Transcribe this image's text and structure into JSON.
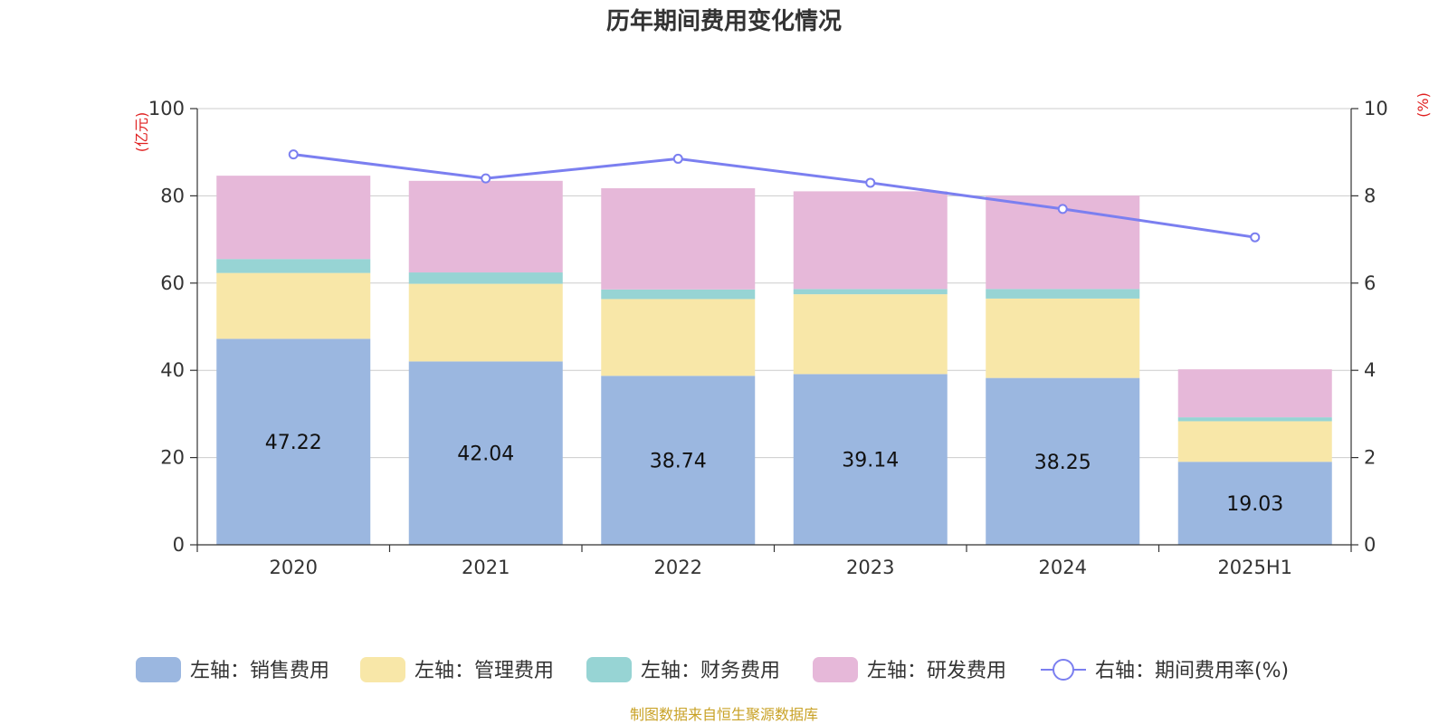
{
  "chart_data": {
    "type": "bar",
    "stacked": true,
    "title": "历年期间费用变化情况",
    "categories": [
      "2020",
      "2021",
      "2022",
      "2023",
      "2024",
      "2025H1"
    ],
    "left_axis": {
      "unit": "(亿元)",
      "ylim": [
        0,
        100
      ],
      "ticks": [
        "0",
        "20",
        "40",
        "60",
        "80",
        "100"
      ],
      "tick_values": [
        0,
        20,
        40,
        60,
        80,
        100
      ]
    },
    "right_axis": {
      "unit": "(%)",
      "ylim": [
        0,
        10
      ],
      "ticks": [
        "0",
        "2",
        "4",
        "6",
        "8",
        "10"
      ],
      "tick_values": [
        0,
        2,
        4,
        6,
        8,
        10
      ]
    },
    "grid": true,
    "legend_position": "bottom",
    "series": [
      {
        "name": "左轴：销售费用",
        "type": "bar",
        "axis": "left",
        "color": "#9bb7e0",
        "values": [
          47.22,
          42.04,
          38.74,
          39.14,
          38.25,
          19.03
        ],
        "labels": [
          "47.22",
          "42.04",
          "38.74",
          "39.14",
          "38.25",
          "19.03"
        ]
      },
      {
        "name": "左轴：管理费用",
        "type": "bar",
        "axis": "left",
        "color": "#f8e7a8",
        "values": [
          15.1,
          17.8,
          17.6,
          18.3,
          18.2,
          9.3
        ]
      },
      {
        "name": "左轴：财务费用",
        "type": "bar",
        "axis": "left",
        "color": "#97d4d4",
        "values": [
          3.2,
          2.6,
          2.2,
          1.2,
          2.2,
          0.9
        ]
      },
      {
        "name": "左轴：研发费用",
        "type": "bar",
        "axis": "left",
        "color": "#e6b8d9",
        "values": [
          19.1,
          21.0,
          23.2,
          22.4,
          21.4,
          11.0
        ]
      },
      {
        "name": "右轴：期间费用率(%)",
        "type": "line",
        "axis": "right",
        "color": "#7b7ff0",
        "values": [
          8.95,
          8.4,
          8.85,
          8.3,
          7.7,
          7.05
        ]
      }
    ],
    "source": "制图数据来自恒生聚源数据库"
  }
}
